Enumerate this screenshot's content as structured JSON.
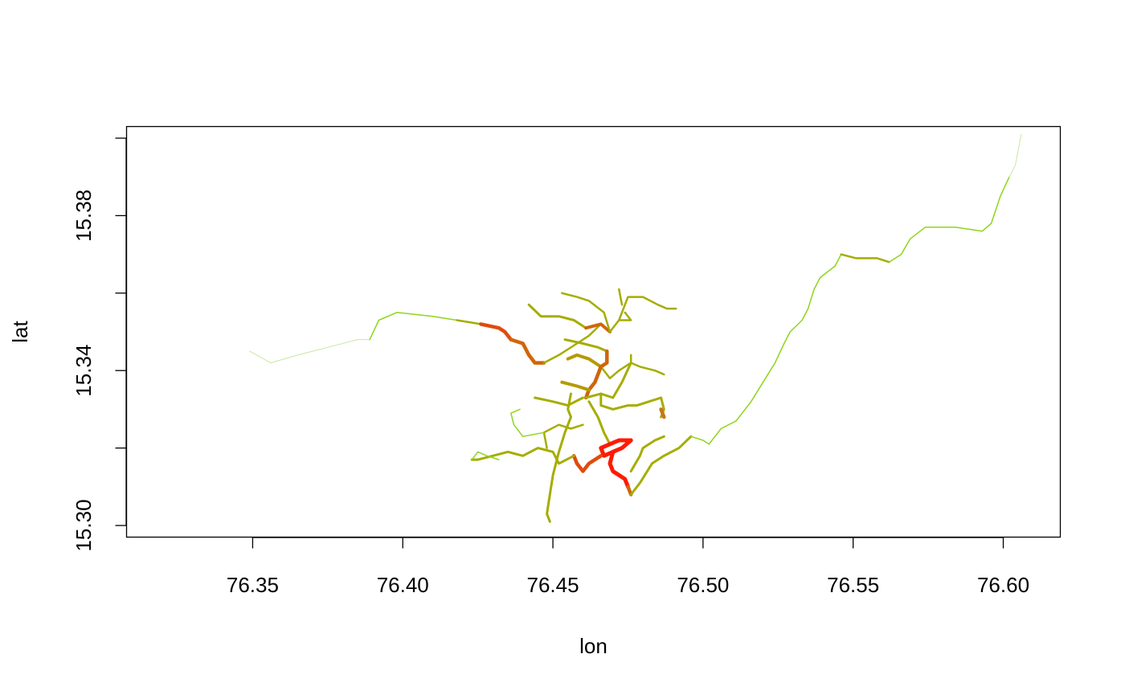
{
  "chart_data": {
    "type": "line",
    "title": "",
    "xlabel": "lon",
    "ylabel": "lat",
    "xlim": [
      76.308,
      76.619
    ],
    "ylim": [
      15.297,
      15.403
    ],
    "x_ticks": [
      76.35,
      76.4,
      76.45,
      76.5,
      76.55,
      76.6
    ],
    "x_tick_labels": [
      "76.35",
      "76.40",
      "76.45",
      "76.50",
      "76.55",
      "76.60"
    ],
    "y_ticks": [
      15.3,
      15.32,
      15.34,
      15.36,
      15.38,
      15.4
    ],
    "y_tick_labels": [
      "15.30",
      "",
      "15.34",
      "",
      "15.38",
      ""
    ],
    "grid": false,
    "legend": "none",
    "color_scale": {
      "low": "#7cdc10",
      "mid": "#a5ad00",
      "high": "#ff1a00"
    },
    "series": [
      {
        "color": "#c8e8a0",
        "width": 1,
        "points": [
          [
            76.349,
            15.345
          ],
          [
            76.356,
            15.342
          ],
          [
            76.365,
            15.344
          ],
          [
            76.375,
            15.346
          ],
          [
            76.385,
            15.348
          ],
          [
            76.389,
            15.348
          ]
        ]
      },
      {
        "color": "#8ed61a",
        "width": 1.5,
        "points": [
          [
            76.389,
            15.348
          ],
          [
            76.392,
            15.353
          ],
          [
            76.398,
            15.355
          ],
          [
            76.41,
            15.354
          ],
          [
            76.418,
            15.353
          ]
        ]
      },
      {
        "color": "#a5ad00",
        "width": 2.5,
        "points": [
          [
            76.418,
            15.353
          ],
          [
            76.426,
            15.352
          ]
        ]
      },
      {
        "color": "#e04b10",
        "width": 4.5,
        "points": [
          [
            76.426,
            15.352
          ],
          [
            76.432,
            15.351
          ],
          [
            76.434,
            15.35
          ],
          [
            76.436,
            15.348
          ]
        ]
      },
      {
        "color": "#d0650a",
        "width": 4.5,
        "points": [
          [
            76.436,
            15.348
          ],
          [
            76.44,
            15.347
          ],
          [
            76.442,
            15.344
          ],
          [
            76.444,
            15.342
          ],
          [
            76.447,
            15.342
          ]
        ]
      },
      {
        "color": "#a5ad00",
        "width": 2.5,
        "points": [
          [
            76.447,
            15.342
          ],
          [
            76.452,
            15.344
          ],
          [
            76.458,
            15.347
          ],
          [
            76.462,
            15.349
          ],
          [
            76.466,
            15.352
          ]
        ]
      },
      {
        "color": "#a5ad00",
        "width": 3,
        "points": [
          [
            76.442,
            15.357
          ],
          [
            76.446,
            15.354
          ],
          [
            76.452,
            15.354
          ],
          [
            76.457,
            15.353
          ],
          [
            76.461,
            15.351
          ]
        ]
      },
      {
        "color": "#d0650a",
        "width": 4,
        "points": [
          [
            76.461,
            15.351
          ],
          [
            76.466,
            15.352
          ],
          [
            76.469,
            15.35
          ]
        ]
      },
      {
        "color": "#a5ad00",
        "width": 2.5,
        "points": [
          [
            76.469,
            15.35
          ],
          [
            76.467,
            15.355
          ],
          [
            76.462,
            15.358
          ],
          [
            76.458,
            15.359
          ],
          [
            76.453,
            15.36
          ]
        ]
      },
      {
        "color": "#a5ad00",
        "width": 2.5,
        "points": [
          [
            76.469,
            15.35
          ],
          [
            76.472,
            15.353
          ],
          [
            76.474,
            15.357
          ],
          [
            76.475,
            15.359
          ],
          [
            76.48,
            15.359
          ],
          [
            76.485,
            15.357
          ],
          [
            76.488,
            15.356
          ],
          [
            76.491,
            15.356
          ]
        ]
      },
      {
        "color": "#a5ad00",
        "width": 2.5,
        "points": [
          [
            76.472,
            15.353
          ],
          [
            76.476,
            15.353
          ],
          [
            76.474,
            15.355
          ]
        ]
      },
      {
        "color": "#a5ad00",
        "width": 2.5,
        "points": [
          [
            76.472,
            15.361
          ],
          [
            76.473,
            15.357
          ]
        ]
      },
      {
        "color": "#a5ad00",
        "width": 3,
        "points": [
          [
            76.454,
            15.348
          ],
          [
            76.46,
            15.347
          ],
          [
            76.465,
            15.346
          ],
          [
            76.468,
            15.345
          ]
        ]
      },
      {
        "color": "#d0650a",
        "width": 4.5,
        "points": [
          [
            76.468,
            15.345
          ],
          [
            76.468,
            15.342
          ],
          [
            76.466,
            15.341
          ]
        ]
      },
      {
        "color": "#b59a00",
        "width": 4,
        "points": [
          [
            76.455,
            15.343
          ],
          [
            76.458,
            15.344
          ],
          [
            76.462,
            15.343
          ],
          [
            76.466,
            15.341
          ]
        ]
      },
      {
        "color": "#a5ad00",
        "width": 2.5,
        "points": [
          [
            76.466,
            15.341
          ],
          [
            76.469,
            15.338
          ],
          [
            76.472,
            15.34
          ],
          [
            76.476,
            15.342
          ],
          [
            76.479,
            15.341
          ],
          [
            76.484,
            15.34
          ],
          [
            76.487,
            15.339
          ]
        ]
      },
      {
        "color": "#a5ad00",
        "width": 2.5,
        "points": [
          [
            76.476,
            15.342
          ],
          [
            76.476,
            15.344
          ]
        ]
      },
      {
        "color": "#d0650a",
        "width": 4.5,
        "points": [
          [
            76.466,
            15.341
          ],
          [
            76.464,
            15.337
          ],
          [
            76.462,
            15.335
          ],
          [
            76.461,
            15.333
          ]
        ]
      },
      {
        "color": "#a5ad00",
        "width": 3,
        "points": [
          [
            76.461,
            15.333
          ],
          [
            76.466,
            15.334
          ],
          [
            76.47,
            15.333
          ],
          [
            76.473,
            15.337
          ],
          [
            76.476,
            15.342
          ]
        ]
      },
      {
        "color": "#a5ad00",
        "width": 3,
        "points": [
          [
            76.444,
            15.333
          ],
          [
            76.45,
            15.332
          ],
          [
            76.455,
            15.331
          ],
          [
            76.46,
            15.333
          ]
        ]
      },
      {
        "color": "#b59a00",
        "width": 4,
        "points": [
          [
            76.453,
            15.337
          ],
          [
            76.458,
            15.336
          ],
          [
            76.462,
            15.335
          ]
        ]
      },
      {
        "color": "#a5ad00",
        "width": 3,
        "points": [
          [
            76.456,
            15.334
          ],
          [
            76.455,
            15.33
          ],
          [
            76.456,
            15.328
          ],
          [
            76.454,
            15.324
          ],
          [
            76.452,
            15.319
          ],
          [
            76.45,
            15.313
          ],
          [
            76.449,
            15.308
          ],
          [
            76.448,
            15.303
          ],
          [
            76.449,
            15.301
          ]
        ]
      },
      {
        "color": "#a5ad00",
        "width": 3,
        "points": [
          [
            76.466,
            15.334
          ],
          [
            76.466,
            15.331
          ],
          [
            76.47,
            15.33
          ],
          [
            76.475,
            15.331
          ],
          [
            76.478,
            15.331
          ],
          [
            76.482,
            15.332
          ],
          [
            76.486,
            15.333
          ],
          [
            76.487,
            15.33
          ],
          [
            76.486,
            15.328
          ]
        ]
      },
      {
        "color": "#c8751a",
        "width": 4.5,
        "points": [
          [
            76.486,
            15.33
          ],
          [
            76.487,
            15.328
          ]
        ]
      },
      {
        "color": "#a5ad00",
        "width": 3,
        "points": [
          [
            76.462,
            15.332
          ],
          [
            76.465,
            15.328
          ],
          [
            76.467,
            15.324
          ],
          [
            76.469,
            15.321
          ]
        ]
      },
      {
        "color": "#ff1a00",
        "width": 5,
        "points": [
          [
            76.469,
            15.321
          ],
          [
            76.472,
            15.322
          ],
          [
            76.476,
            15.322
          ],
          [
            76.473,
            15.32
          ],
          [
            76.47,
            15.319
          ],
          [
            76.467,
            15.318
          ],
          [
            76.466,
            15.32
          ],
          [
            76.469,
            15.321
          ]
        ]
      },
      {
        "color": "#ff1a00",
        "width": 5,
        "points": [
          [
            76.47,
            15.319
          ],
          [
            76.469,
            15.316
          ],
          [
            76.47,
            15.314
          ],
          [
            76.472,
            15.313
          ],
          [
            76.474,
            15.312
          ],
          [
            76.475,
            15.31
          ]
        ]
      },
      {
        "color": "#e04b10",
        "width": 4.5,
        "points": [
          [
            76.466,
            15.318
          ],
          [
            76.462,
            15.316
          ],
          [
            76.46,
            15.314
          ],
          [
            76.458,
            15.316
          ],
          [
            76.457,
            15.318
          ]
        ]
      },
      {
        "color": "#a5ad00",
        "width": 3,
        "points": [
          [
            76.457,
            15.318
          ],
          [
            76.452,
            15.316
          ],
          [
            76.45,
            15.319
          ],
          [
            76.445,
            15.32
          ],
          [
            76.44,
            15.318
          ],
          [
            76.435,
            15.319
          ],
          [
            76.43,
            15.318
          ],
          [
            76.425,
            15.317
          ],
          [
            76.423,
            15.317
          ]
        ]
      },
      {
        "color": "#8ed61a",
        "width": 1.5,
        "points": [
          [
            76.423,
            15.317
          ],
          [
            76.425,
            15.319
          ],
          [
            76.428,
            15.318
          ],
          [
            76.432,
            15.317
          ]
        ]
      },
      {
        "color": "#a5ad00",
        "width": 2.5,
        "points": [
          [
            76.448,
            15.32
          ],
          [
            76.447,
            15.324
          ],
          [
            76.452,
            15.326
          ],
          [
            76.456,
            15.325
          ],
          [
            76.46,
            15.326
          ]
        ]
      },
      {
        "color": "#8ed61a",
        "width": 1.5,
        "points": [
          [
            76.447,
            15.324
          ],
          [
            76.44,
            15.323
          ],
          [
            76.437,
            15.326
          ],
          [
            76.436,
            15.329
          ],
          [
            76.439,
            15.33
          ]
        ]
      },
      {
        "color": "#d0650a",
        "width": 4.5,
        "points": [
          [
            76.475,
            15.31
          ],
          [
            76.476,
            15.308
          ]
        ]
      },
      {
        "color": "#a5ad00",
        "width": 3,
        "points": [
          [
            76.476,
            15.308
          ],
          [
            76.479,
            15.311
          ],
          [
            76.483,
            15.316
          ],
          [
            76.487,
            15.318
          ],
          [
            76.492,
            15.32
          ],
          [
            76.496,
            15.323
          ]
        ]
      },
      {
        "color": "#a5ad00",
        "width": 3,
        "points": [
          [
            76.476,
            15.314
          ],
          [
            76.479,
            15.318
          ],
          [
            76.48,
            15.32
          ],
          [
            76.484,
            15.322
          ],
          [
            76.487,
            15.323
          ]
        ]
      },
      {
        "color": "#8ed61a",
        "width": 1.5,
        "points": [
          [
            76.496,
            15.323
          ],
          [
            76.5,
            15.322
          ],
          [
            76.502,
            15.321
          ],
          [
            76.506,
            15.325
          ],
          [
            76.511,
            15.327
          ],
          [
            76.516,
            15.332
          ],
          [
            76.52,
            15.337
          ],
          [
            76.524,
            15.342
          ],
          [
            76.527,
            15.347
          ],
          [
            76.529,
            15.35
          ],
          [
            76.533,
            15.353
          ],
          [
            76.535,
            15.356
          ],
          [
            76.537,
            15.361
          ],
          [
            76.539,
            15.364
          ],
          [
            76.544,
            15.367
          ],
          [
            76.546,
            15.37
          ]
        ]
      },
      {
        "color": "#a5ad00",
        "width": 2.5,
        "points": [
          [
            76.546,
            15.37
          ],
          [
            76.551,
            15.369
          ],
          [
            76.558,
            15.369
          ],
          [
            76.562,
            15.368
          ]
        ]
      },
      {
        "color": "#8ed61a",
        "width": 1.5,
        "points": [
          [
            76.562,
            15.368
          ],
          [
            76.566,
            15.37
          ],
          [
            76.569,
            15.374
          ],
          [
            76.574,
            15.377
          ],
          [
            76.578,
            15.377
          ],
          [
            76.584,
            15.377
          ],
          [
            76.593,
            15.376
          ],
          [
            76.596,
            15.378
          ],
          [
            76.599,
            15.385
          ],
          [
            76.602,
            15.39
          ]
        ]
      },
      {
        "color": "#c8e8a0",
        "width": 1,
        "points": [
          [
            76.602,
            15.39
          ],
          [
            76.604,
            15.393
          ],
          [
            76.605,
            15.397
          ],
          [
            76.606,
            15.401
          ]
        ]
      }
    ]
  }
}
